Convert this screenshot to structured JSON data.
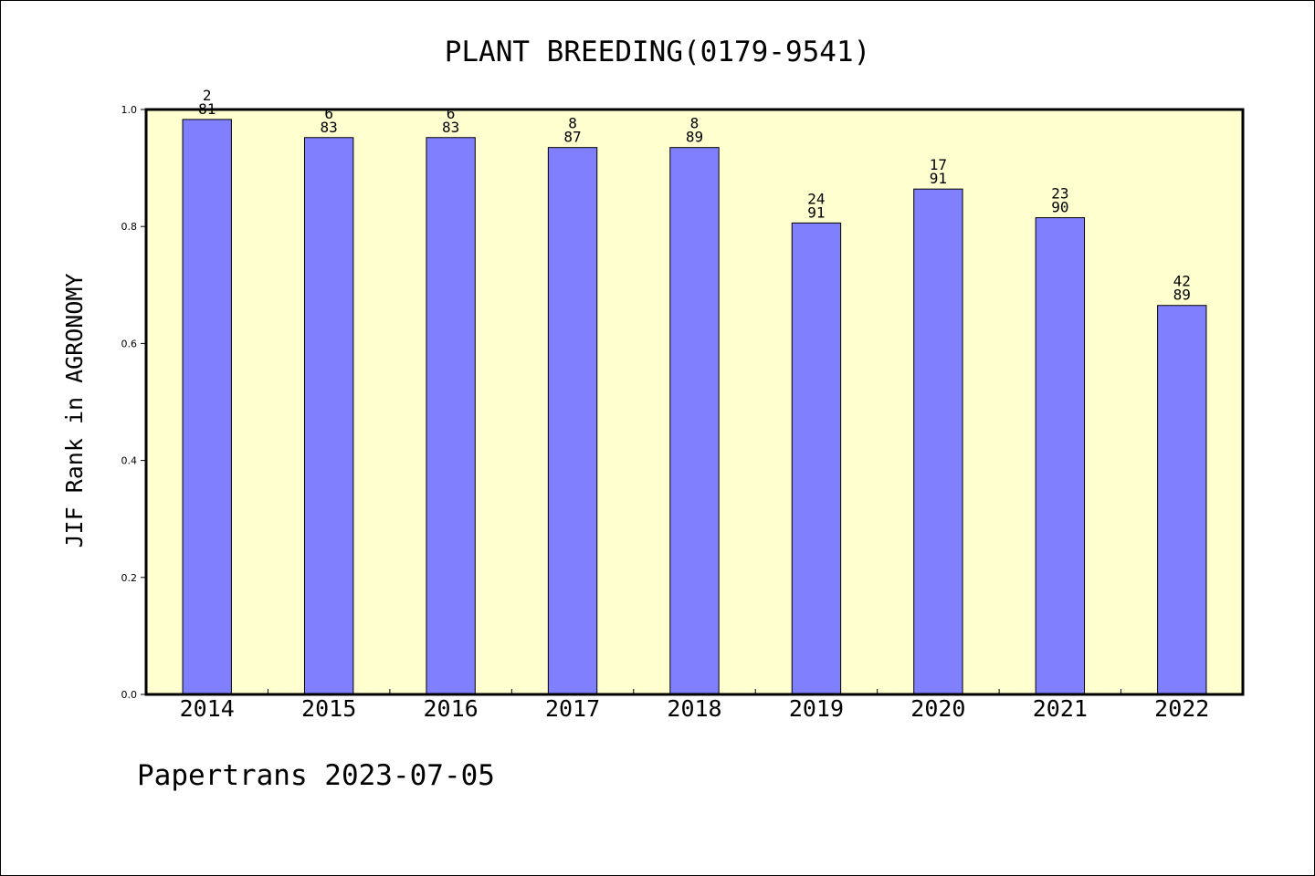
{
  "chart_data": {
    "type": "bar",
    "title": "PLANT BREEDING(0179-9541)",
    "xlabel": "",
    "ylabel": "JIF Rank in AGRONOMY",
    "ylim": [
      0,
      1.0
    ],
    "yticks": [
      "0.0",
      "0.2",
      "0.4",
      "0.6",
      "0.8",
      "1.0"
    ],
    "categories": [
      "2014",
      "2015",
      "2016",
      "2017",
      "2018",
      "2019",
      "2020",
      "2021",
      "2022"
    ],
    "values": [
      0.983,
      0.952,
      0.952,
      0.935,
      0.935,
      0.806,
      0.864,
      0.815,
      0.665
    ],
    "rank_labels": [
      {
        "rank": "2",
        "total": "81"
      },
      {
        "rank": "6",
        "total": "83"
      },
      {
        "rank": "6",
        "total": "83"
      },
      {
        "rank": "8",
        "total": "87"
      },
      {
        "rank": "8",
        "total": "89"
      },
      {
        "rank": "24",
        "total": "91"
      },
      {
        "rank": "17",
        "total": "91"
      },
      {
        "rank": "23",
        "total": "90"
      },
      {
        "rank": "42",
        "total": "89"
      }
    ],
    "grid": false,
    "legend": "none",
    "colors": {
      "bar": "#8080ff",
      "plot_background": "#ffffd0",
      "axis": "#000000"
    }
  },
  "footer": "Papertrans 2023-07-05"
}
